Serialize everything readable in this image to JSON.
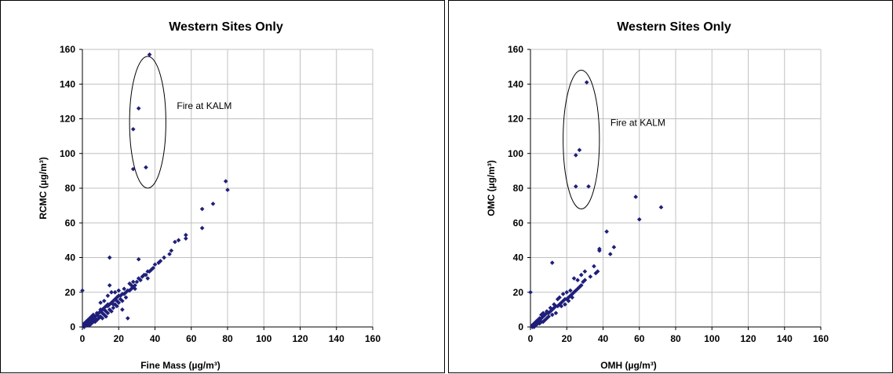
{
  "chart_data": [
    {
      "type": "scatter",
      "title": "Western Sites Only",
      "xlabel": "Fine Mass (µg/m³)",
      "ylabel": "RCMC (µg/m³)",
      "xlim": [
        0,
        160
      ],
      "ylim": [
        0,
        160
      ],
      "xticks": [
        "0",
        "20",
        "40",
        "60",
        "80",
        "100",
        "120",
        "140",
        "160"
      ],
      "yticks": [
        "0",
        "20",
        "40",
        "60",
        "80",
        "100",
        "120",
        "140",
        "160"
      ],
      "grid": true,
      "marker_color": "#1f1f7a",
      "annotation": {
        "text": "Fire at KALM",
        "ellipse_center": [
          36,
          118
        ],
        "ellipse_radii": [
          10,
          38
        ]
      },
      "series": [
        {
          "points": [
            [
              37,
              157
            ],
            [
              31,
              126
            ],
            [
              28,
              114
            ],
            [
              28,
              91
            ],
            [
              35,
              92
            ],
            [
              79,
              84
            ],
            [
              80,
              79
            ],
            [
              72,
              71
            ],
            [
              66,
              68
            ],
            [
              66,
              57
            ],
            [
              57,
              53
            ],
            [
              57,
              51
            ],
            [
              53,
              50
            ],
            [
              51,
              49
            ],
            [
              49,
              44
            ],
            [
              48,
              42
            ],
            [
              45,
              40
            ],
            [
              43,
              38
            ],
            [
              42,
              37
            ],
            [
              40,
              36
            ],
            [
              39,
              34
            ],
            [
              38,
              33
            ],
            [
              37,
              32
            ],
            [
              36,
              32
            ],
            [
              35,
              30
            ],
            [
              33,
              29
            ],
            [
              31,
              39
            ],
            [
              15,
              40
            ],
            [
              0,
              21
            ],
            [
              32,
              27
            ],
            [
              30,
              26
            ],
            [
              29,
              24
            ],
            [
              28,
              23
            ],
            [
              27,
              22
            ],
            [
              26,
              21
            ],
            [
              25,
              21
            ],
            [
              24,
              20
            ],
            [
              23,
              19
            ],
            [
              22,
              19
            ],
            [
              21,
              18
            ],
            [
              20,
              18
            ],
            [
              19,
              17
            ],
            [
              18,
              16
            ],
            [
              17,
              15
            ],
            [
              16,
              14
            ],
            [
              15,
              13
            ],
            [
              14,
              12
            ],
            [
              13,
              12
            ],
            [
              12,
              11
            ],
            [
              11,
              10
            ],
            [
              10,
              9
            ],
            [
              9,
              8
            ],
            [
              8,
              7
            ],
            [
              7,
              6
            ],
            [
              6,
              6
            ],
            [
              5,
              5
            ],
            [
              4,
              4
            ],
            [
              3,
              3
            ],
            [
              2,
              2
            ],
            [
              1,
              1
            ],
            [
              25,
              5
            ],
            [
              22,
              10
            ],
            [
              19,
              12
            ],
            [
              17,
              11
            ],
            [
              16,
              9
            ],
            [
              14,
              8
            ],
            [
              13,
              6
            ],
            [
              12,
              7
            ],
            [
              11,
              5
            ],
            [
              9,
              6
            ],
            [
              8,
              4
            ],
            [
              7,
              3
            ],
            [
              6,
              3
            ],
            [
              5,
              2
            ],
            [
              4,
              1
            ],
            [
              3,
              2
            ],
            [
              2,
              1
            ],
            [
              1,
              0
            ],
            [
              20,
              14
            ],
            [
              18,
              13
            ],
            [
              15,
              10
            ],
            [
              13,
              9
            ],
            [
              11,
              8
            ],
            [
              10,
              6
            ],
            [
              9,
              5
            ],
            [
              7,
              5
            ],
            [
              6,
              4
            ],
            [
              5,
              3
            ],
            [
              4,
              2
            ],
            [
              3,
              1
            ],
            [
              27,
              24
            ],
            [
              29,
              22
            ],
            [
              31,
              28
            ],
            [
              34,
              30
            ],
            [
              36,
              28
            ],
            [
              24,
              17
            ],
            [
              22,
              15
            ],
            [
              21,
              16
            ],
            [
              19,
              15
            ],
            [
              17,
              13
            ],
            [
              14,
              13
            ],
            [
              12,
              10
            ],
            [
              10,
              10
            ],
            [
              8,
              8
            ],
            [
              6,
              7
            ],
            [
              5,
              6
            ],
            [
              4,
              5
            ],
            [
              3,
              4
            ],
            [
              2,
              3
            ],
            [
              1,
              2
            ],
            [
              15,
              24
            ],
            [
              16,
              20
            ],
            [
              14,
              18
            ],
            [
              12,
              15
            ],
            [
              10,
              14
            ],
            [
              18,
              20
            ],
            [
              20,
              21
            ],
            [
              23,
              22
            ],
            [
              26,
              25
            ],
            [
              28,
              26
            ]
          ]
        }
      ]
    },
    {
      "type": "scatter",
      "title": "Western Sites Only",
      "xlabel": "OMH (µg/m³)",
      "ylabel": "OMC (µg/m³)",
      "xlim": [
        0,
        160
      ],
      "ylim": [
        0,
        160
      ],
      "xticks": [
        "0",
        "20",
        "40",
        "60",
        "80",
        "100",
        "120",
        "140",
        "160"
      ],
      "yticks": [
        "0",
        "20",
        "40",
        "60",
        "80",
        "100",
        "120",
        "140",
        "160"
      ],
      "grid": true,
      "marker_color": "#1f1f7a",
      "annotation": {
        "text": "Fire at KALM",
        "ellipse_center": [
          28,
          108
        ],
        "ellipse_radii": [
          10,
          40
        ]
      },
      "series": [
        {
          "points": [
            [
              31,
              141
            ],
            [
              27,
              102
            ],
            [
              25,
              99
            ],
            [
              25,
              81
            ],
            [
              32,
              81
            ],
            [
              58,
              75
            ],
            [
              72,
              69
            ],
            [
              60,
              62
            ],
            [
              42,
              55
            ],
            [
              46,
              46
            ],
            [
              44,
              42
            ],
            [
              38,
              45
            ],
            [
              38,
              44
            ],
            [
              35,
              35
            ],
            [
              37,
              32
            ],
            [
              36,
              31
            ],
            [
              33,
              29
            ],
            [
              30,
              27
            ],
            [
              29,
              26
            ],
            [
              28,
              24
            ],
            [
              27,
              23
            ],
            [
              26,
              22
            ],
            [
              25,
              21
            ],
            [
              24,
              20
            ],
            [
              23,
              19
            ],
            [
              22,
              18
            ],
            [
              21,
              17
            ],
            [
              20,
              16
            ],
            [
              19,
              16
            ],
            [
              18,
              15
            ],
            [
              17,
              14
            ],
            [
              16,
              13
            ],
            [
              15,
              12
            ],
            [
              14,
              12
            ],
            [
              13,
              11
            ],
            [
              12,
              10
            ],
            [
              11,
              9
            ],
            [
              10,
              8
            ],
            [
              9,
              8
            ],
            [
              8,
              7
            ],
            [
              7,
              6
            ],
            [
              6,
              5
            ],
            [
              5,
              4
            ],
            [
              4,
              3
            ],
            [
              3,
              3
            ],
            [
              2,
              2
            ],
            [
              1,
              1
            ],
            [
              12,
              37
            ],
            [
              0,
              20
            ],
            [
              26,
              27
            ],
            [
              28,
              30
            ],
            [
              30,
              32
            ],
            [
              24,
              28
            ],
            [
              14,
              8
            ],
            [
              12,
              7
            ],
            [
              10,
              6
            ],
            [
              9,
              5
            ],
            [
              8,
              4
            ],
            [
              7,
              3
            ],
            [
              6,
              3
            ],
            [
              5,
              2
            ],
            [
              4,
              2
            ],
            [
              3,
              1
            ],
            [
              2,
              1
            ],
            [
              1,
              0
            ],
            [
              15,
              16
            ],
            [
              13,
              13
            ],
            [
              11,
              11
            ],
            [
              9,
              9
            ],
            [
              7,
              8
            ],
            [
              6,
              7
            ],
            [
              5,
              5
            ],
            [
              4,
              4
            ],
            [
              3,
              2
            ],
            [
              2,
              0
            ],
            [
              18,
              19
            ],
            [
              20,
              20
            ],
            [
              22,
              21
            ],
            [
              16,
              17
            ],
            [
              17,
              12
            ],
            [
              19,
              13
            ],
            [
              21,
              15
            ],
            [
              23,
              17
            ]
          ]
        }
      ]
    }
  ]
}
